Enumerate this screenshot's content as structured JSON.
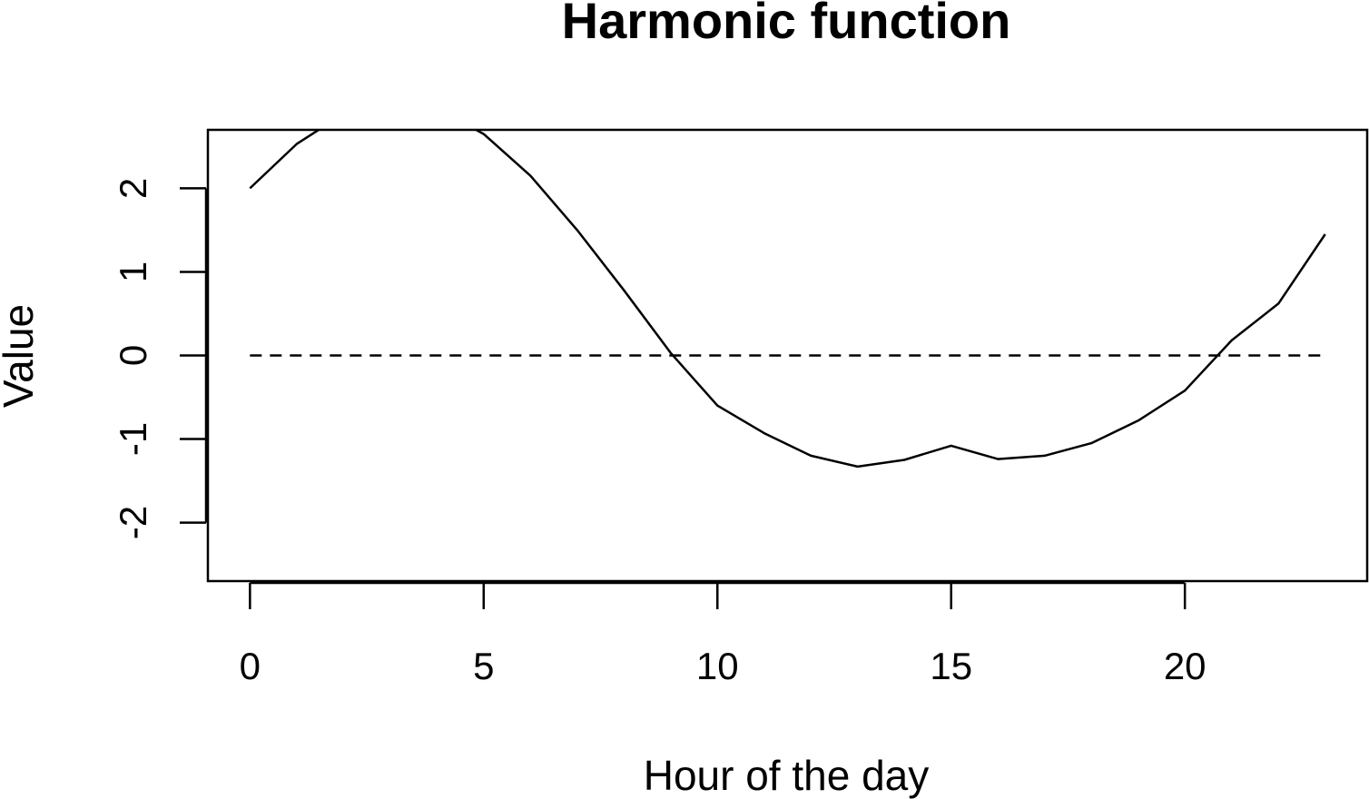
{
  "chart_data": {
    "type": "line",
    "title": "Harmonic function",
    "xlabel": "Hour of the day",
    "ylabel": "Value",
    "xlim": [
      -0.9,
      23.9
    ],
    "ylim": [
      -2.7,
      2.7
    ],
    "x_ticks": [
      0,
      5,
      10,
      15,
      20
    ],
    "x_tick_labels": [
      "0",
      "5",
      "10",
      "15",
      "20"
    ],
    "y_ticks": [
      -2,
      -1,
      0,
      1,
      2
    ],
    "y_tick_labels": [
      "-2",
      "-1",
      "0",
      "1",
      "2"
    ],
    "grid": false,
    "series": [
      {
        "style": "solid",
        "color": "#000000",
        "x": [
          0,
          1,
          2,
          3,
          4,
          5,
          6,
          7,
          8,
          9,
          10,
          11,
          12,
          13,
          14,
          15,
          16,
          17,
          18,
          19,
          20,
          21,
          22,
          23
        ],
        "values": [
          2.0,
          2.53,
          2.89,
          3.04,
          2.96,
          2.65,
          2.15,
          1.5,
          0.78,
          0.03,
          -0.6,
          -0.93,
          -1.2,
          -1.33,
          -1.25,
          -1.08,
          -1.24,
          -1.2,
          -1.05,
          -0.78,
          -0.42,
          0.18,
          0.62,
          1.45
        ]
      },
      {
        "style": "dashed",
        "color": "#000000",
        "x": [
          0,
          23
        ],
        "values": [
          0,
          0
        ]
      }
    ]
  }
}
